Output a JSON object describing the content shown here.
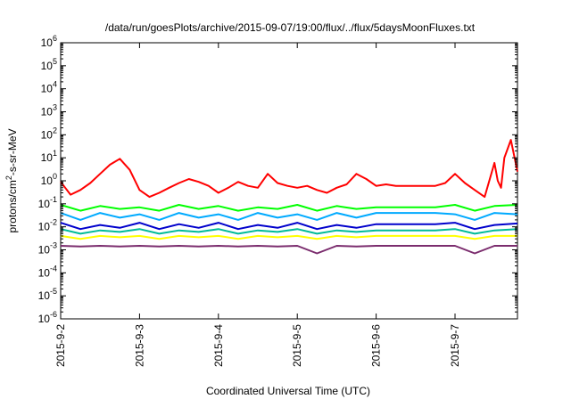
{
  "chart_data": {
    "type": "line",
    "title": "/data/run/goesPlots/archive/2015-09-07/19:00/flux/../flux/5daysMoonFluxes.txt",
    "xlabel": "Coordinated Universal Time (UTC)",
    "ylabel_prefix": "protons/cm",
    "ylabel_sup": "2",
    "ylabel_suffix": "-s-sr-MeV",
    "x_ticks": [
      "2015-9-2",
      "2015-9-3",
      "2015-9-4",
      "2015-9-5",
      "2015-9-6",
      "2015-9-7"
    ],
    "xlim": [
      "2015-09-02T00:00",
      "2015-09-07T19:00"
    ],
    "y_scale": "log",
    "ylim": [
      1e-06,
      1000000
    ],
    "y_tick_base": "10",
    "y_tick_exponents": [
      "-6",
      "-5",
      "-4",
      "-3",
      "-2",
      "-1",
      "0",
      "1",
      "2",
      "3",
      "4",
      "5",
      "6"
    ],
    "grid": false,
    "series": [
      {
        "color": "#ff0000",
        "x": [
          "2015-09-02T00:00",
          "2015-09-02T03:00",
          "2015-09-02T06:00",
          "2015-09-02T09:00",
          "2015-09-02T12:00",
          "2015-09-02T15:00",
          "2015-09-02T18:00",
          "2015-09-02T21:00",
          "2015-09-03T00:00",
          "2015-09-03T03:00",
          "2015-09-03T06:00",
          "2015-09-03T09:00",
          "2015-09-03T12:00",
          "2015-09-03T15:00",
          "2015-09-03T18:00",
          "2015-09-03T21:00",
          "2015-09-04T00:00",
          "2015-09-04T03:00",
          "2015-09-04T06:00",
          "2015-09-04T09:00",
          "2015-09-04T12:00",
          "2015-09-04T15:00",
          "2015-09-04T18:00",
          "2015-09-04T21:00",
          "2015-09-05T00:00",
          "2015-09-05T03:00",
          "2015-09-05T06:00",
          "2015-09-05T09:00",
          "2015-09-05T12:00",
          "2015-09-05T15:00",
          "2015-09-05T18:00",
          "2015-09-05T21:00",
          "2015-09-06T00:00",
          "2015-09-06T03:00",
          "2015-09-06T06:00",
          "2015-09-06T09:00",
          "2015-09-06T12:00",
          "2015-09-06T15:00",
          "2015-09-06T18:00",
          "2015-09-06T21:00",
          "2015-09-07T00:00",
          "2015-09-07T03:00",
          "2015-09-07T06:00",
          "2015-09-07T09:00",
          "2015-09-07T12:00",
          "2015-09-07T13:00",
          "2015-09-07T14:00",
          "2015-09-07T15:00",
          "2015-09-07T17:00",
          "2015-09-07T19:00"
        ],
        "values": [
          0.9,
          0.25,
          0.4,
          0.8,
          2,
          5,
          9,
          3,
          0.4,
          0.2,
          0.3,
          0.5,
          0.8,
          1.2,
          0.9,
          0.6,
          0.3,
          0.5,
          0.9,
          0.6,
          0.5,
          2,
          0.8,
          0.6,
          0.5,
          0.6,
          0.4,
          0.3,
          0.5,
          0.7,
          2,
          1.2,
          0.6,
          0.7,
          0.6,
          0.6,
          0.6,
          0.6,
          0.6,
          0.8,
          2,
          0.8,
          0.4,
          0.2,
          6,
          1,
          0.5,
          10,
          60,
          2.5
        ]
      },
      {
        "color": "#00ff00",
        "x": [
          "2015-09-02T00:00",
          "2015-09-02T06:00",
          "2015-09-02T12:00",
          "2015-09-02T18:00",
          "2015-09-03T00:00",
          "2015-09-03T06:00",
          "2015-09-03T12:00",
          "2015-09-03T18:00",
          "2015-09-04T00:00",
          "2015-09-04T06:00",
          "2015-09-04T12:00",
          "2015-09-04T18:00",
          "2015-09-05T00:00",
          "2015-09-05T06:00",
          "2015-09-05T12:00",
          "2015-09-05T18:00",
          "2015-09-06T00:00",
          "2015-09-06T06:00",
          "2015-09-06T12:00",
          "2015-09-06T18:00",
          "2015-09-07T00:00",
          "2015-09-07T06:00",
          "2015-09-07T12:00",
          "2015-09-07T19:00"
        ],
        "values": [
          0.09,
          0.05,
          0.08,
          0.06,
          0.07,
          0.05,
          0.09,
          0.06,
          0.08,
          0.05,
          0.07,
          0.06,
          0.09,
          0.05,
          0.08,
          0.06,
          0.07,
          0.07,
          0.07,
          0.07,
          0.09,
          0.05,
          0.08,
          0.09
        ]
      },
      {
        "color": "#00aaff",
        "x": [
          "2015-09-02T00:00",
          "2015-09-02T06:00",
          "2015-09-02T12:00",
          "2015-09-02T18:00",
          "2015-09-03T00:00",
          "2015-09-03T06:00",
          "2015-09-03T12:00",
          "2015-09-03T18:00",
          "2015-09-04T00:00",
          "2015-09-04T06:00",
          "2015-09-04T12:00",
          "2015-09-04T18:00",
          "2015-09-05T00:00",
          "2015-09-05T06:00",
          "2015-09-05T12:00",
          "2015-09-05T18:00",
          "2015-09-06T00:00",
          "2015-09-06T06:00",
          "2015-09-06T12:00",
          "2015-09-06T18:00",
          "2015-09-07T00:00",
          "2015-09-07T06:00",
          "2015-09-07T12:00",
          "2015-09-07T19:00"
        ],
        "values": [
          0.04,
          0.02,
          0.04,
          0.025,
          0.035,
          0.02,
          0.04,
          0.025,
          0.035,
          0.02,
          0.04,
          0.025,
          0.035,
          0.02,
          0.04,
          0.025,
          0.04,
          0.04,
          0.04,
          0.04,
          0.035,
          0.02,
          0.04,
          0.035
        ]
      },
      {
        "color": "#0000cc",
        "x": [
          "2015-09-02T00:00",
          "2015-09-02T06:00",
          "2015-09-02T12:00",
          "2015-09-02T18:00",
          "2015-09-03T00:00",
          "2015-09-03T06:00",
          "2015-09-03T12:00",
          "2015-09-03T18:00",
          "2015-09-04T00:00",
          "2015-09-04T06:00",
          "2015-09-04T12:00",
          "2015-09-04T18:00",
          "2015-09-05T00:00",
          "2015-09-05T06:00",
          "2015-09-05T12:00",
          "2015-09-05T18:00",
          "2015-09-06T00:00",
          "2015-09-06T06:00",
          "2015-09-06T12:00",
          "2015-09-06T18:00",
          "2015-09-07T00:00",
          "2015-09-07T06:00",
          "2015-09-07T12:00",
          "2015-09-07T19:00"
        ],
        "values": [
          0.015,
          0.008,
          0.012,
          0.009,
          0.015,
          0.008,
          0.013,
          0.009,
          0.015,
          0.008,
          0.012,
          0.009,
          0.015,
          0.008,
          0.012,
          0.009,
          0.013,
          0.013,
          0.013,
          0.013,
          0.015,
          0.008,
          0.012,
          0.014
        ]
      },
      {
        "color": "#00bb99",
        "x": [
          "2015-09-02T00:00",
          "2015-09-02T06:00",
          "2015-09-02T12:00",
          "2015-09-02T18:00",
          "2015-09-03T00:00",
          "2015-09-03T06:00",
          "2015-09-03T12:00",
          "2015-09-03T18:00",
          "2015-09-04T00:00",
          "2015-09-04T06:00",
          "2015-09-04T12:00",
          "2015-09-04T18:00",
          "2015-09-05T00:00",
          "2015-09-05T06:00",
          "2015-09-05T12:00",
          "2015-09-05T18:00",
          "2015-09-06T00:00",
          "2015-09-06T06:00",
          "2015-09-06T12:00",
          "2015-09-06T18:00",
          "2015-09-07T00:00",
          "2015-09-07T06:00",
          "2015-09-07T12:00",
          "2015-09-07T19:00"
        ],
        "values": [
          0.008,
          0.005,
          0.007,
          0.006,
          0.008,
          0.005,
          0.007,
          0.006,
          0.008,
          0.005,
          0.007,
          0.006,
          0.008,
          0.005,
          0.007,
          0.006,
          0.007,
          0.007,
          0.007,
          0.007,
          0.008,
          0.005,
          0.007,
          0.008
        ]
      },
      {
        "color": "#ffff00",
        "x": [
          "2015-09-02T00:00",
          "2015-09-02T06:00",
          "2015-09-02T12:00",
          "2015-09-02T18:00",
          "2015-09-03T00:00",
          "2015-09-03T06:00",
          "2015-09-03T12:00",
          "2015-09-03T18:00",
          "2015-09-04T00:00",
          "2015-09-04T06:00",
          "2015-09-04T12:00",
          "2015-09-04T18:00",
          "2015-09-05T00:00",
          "2015-09-05T06:00",
          "2015-09-05T12:00",
          "2015-09-05T18:00",
          "2015-09-06T00:00",
          "2015-09-06T06:00",
          "2015-09-06T12:00",
          "2015-09-06T18:00",
          "2015-09-07T00:00",
          "2015-09-07T06:00",
          "2015-09-07T12:00",
          "2015-09-07T19:00"
        ],
        "values": [
          0.004,
          0.003,
          0.004,
          0.0035,
          0.004,
          0.003,
          0.004,
          0.0035,
          0.004,
          0.003,
          0.004,
          0.0035,
          0.004,
          0.003,
          0.004,
          0.0035,
          0.004,
          0.004,
          0.004,
          0.004,
          0.004,
          0.003,
          0.004,
          0.004
        ]
      },
      {
        "color": "#7b2d6e",
        "x": [
          "2015-09-02T00:00",
          "2015-09-02T06:00",
          "2015-09-02T12:00",
          "2015-09-02T18:00",
          "2015-09-03T00:00",
          "2015-09-03T06:00",
          "2015-09-03T12:00",
          "2015-09-03T18:00",
          "2015-09-04T00:00",
          "2015-09-04T06:00",
          "2015-09-04T12:00",
          "2015-09-04T18:00",
          "2015-09-05T00:00",
          "2015-09-05T06:00",
          "2015-09-05T12:00",
          "2015-09-05T18:00",
          "2015-09-06T00:00",
          "2015-09-06T06:00",
          "2015-09-06T12:00",
          "2015-09-06T18:00",
          "2015-09-07T00:00",
          "2015-09-07T06:00",
          "2015-09-07T12:00",
          "2015-09-07T19:00"
        ],
        "values": [
          0.0015,
          0.0014,
          0.0015,
          0.0014,
          0.0015,
          0.0014,
          0.0015,
          0.0014,
          0.0015,
          0.0014,
          0.0015,
          0.0014,
          0.0015,
          0.0007,
          0.0015,
          0.0014,
          0.0015,
          0.0015,
          0.0015,
          0.0015,
          0.0015,
          0.0007,
          0.0015,
          0.0015
        ]
      }
    ]
  }
}
